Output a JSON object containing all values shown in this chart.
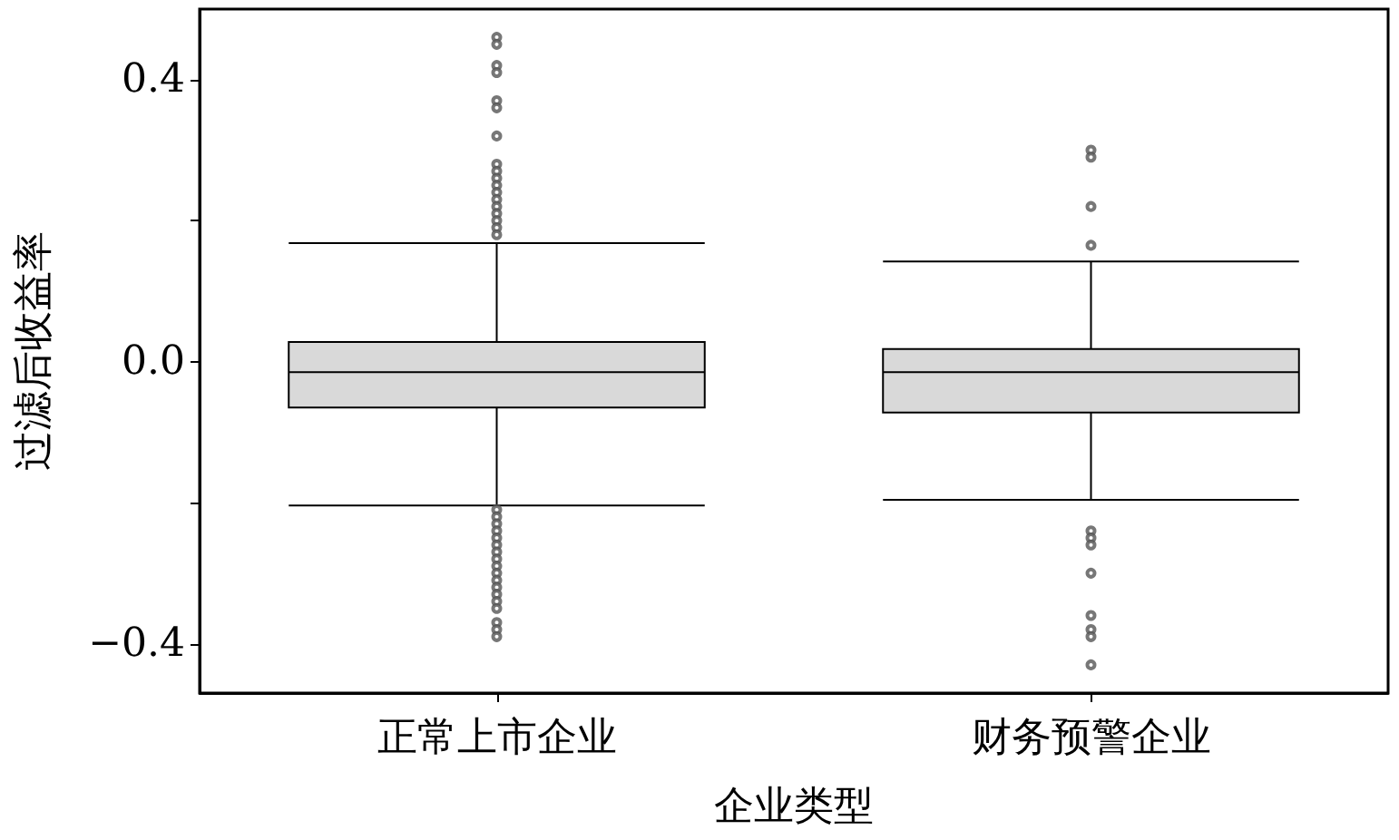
{
  "chart_data": {
    "type": "box",
    "xlabel": "企业类型",
    "ylabel": "过滤后收益率",
    "categories": [
      "正常上市企业",
      "财务预警企业"
    ],
    "color": "#d9d9d9",
    "boxes": [
      {
        "low": -0.204,
        "q1": -0.065,
        "median": -0.015,
        "q3": 0.028,
        "high": 0.168,
        "outliers": [
          0.46,
          0.45,
          0.42,
          0.41,
          0.37,
          0.36,
          0.32,
          0.28,
          0.27,
          0.26,
          0.25,
          0.24,
          0.23,
          0.22,
          0.21,
          0.2,
          0.19,
          0.18,
          -0.21,
          -0.22,
          -0.23,
          -0.24,
          -0.25,
          -0.26,
          -0.27,
          -0.28,
          -0.29,
          -0.3,
          -0.31,
          -0.32,
          -0.33,
          -0.34,
          -0.35,
          -0.37,
          -0.38,
          -0.39
        ]
      },
      {
        "low": -0.196,
        "q1": -0.072,
        "median": -0.015,
        "q3": 0.018,
        "high": 0.142,
        "outliers": [
          0.3,
          0.29,
          0.22,
          0.165,
          -0.24,
          -0.25,
          -0.26,
          -0.3,
          -0.36,
          -0.38,
          -0.39,
          -0.43
        ]
      }
    ],
    "ylim": [
      -0.47,
      0.5
    ],
    "yticks": [
      {
        "value": -0.4,
        "label": "−0.4"
      },
      {
        "value": -0.2,
        "label": null
      },
      {
        "value": 0,
        "label": "0.0"
      },
      {
        "value": 0.2,
        "label": null
      },
      {
        "value": 0.4,
        "label": "0.4"
      }
    ],
    "grid": false
  }
}
